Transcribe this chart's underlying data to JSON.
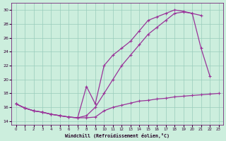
{
  "xlabel": "Windchill (Refroidissement éolien,°C)",
  "bg_color": "#cceedd",
  "line_color": "#993399",
  "xlim": [
    -0.5,
    23.5
  ],
  "ylim": [
    13.5,
    31.0
  ],
  "yticks": [
    14,
    16,
    18,
    20,
    22,
    24,
    26,
    28,
    30
  ],
  "xticks": [
    0,
    1,
    2,
    3,
    4,
    5,
    6,
    7,
    8,
    9,
    10,
    11,
    12,
    13,
    14,
    15,
    16,
    17,
    18,
    19,
    20,
    21,
    22,
    23
  ],
  "line1_x": [
    0,
    1,
    2,
    3,
    4,
    5,
    6,
    7,
    8,
    9,
    10,
    11,
    12,
    13,
    14,
    15,
    16,
    17,
    18,
    19,
    20,
    21,
    22,
    23
  ],
  "line1_y": [
    16.5,
    15.9,
    15.5,
    15.3,
    15.0,
    14.8,
    14.6,
    14.5,
    14.5,
    14.6,
    15.5,
    16.0,
    16.3,
    16.6,
    16.9,
    17.0,
    17.2,
    17.3,
    17.5,
    17.6,
    17.7,
    17.8,
    17.9,
    18.0
  ],
  "line2_x": [
    0,
    1,
    2,
    3,
    4,
    5,
    6,
    7,
    8,
    9,
    10,
    11,
    12,
    13,
    14,
    15,
    16,
    17,
    18,
    19,
    20,
    21,
    22,
    23
  ],
  "line2_y": [
    16.5,
    15.9,
    15.5,
    15.3,
    15.0,
    14.8,
    14.6,
    14.5,
    19.0,
    16.5,
    22.0,
    23.5,
    24.5,
    25.5,
    27.0,
    28.5,
    29.0,
    29.5,
    30.0,
    29.8,
    29.5,
    24.5,
    20.5,
    null
  ],
  "line3_x": [
    0,
    1,
    2,
    3,
    4,
    5,
    6,
    7,
    8,
    9,
    10,
    11,
    12,
    13,
    14,
    15,
    16,
    17,
    18,
    19,
    20,
    21,
    22,
    23
  ],
  "line3_y": [
    16.5,
    15.9,
    15.5,
    15.3,
    15.0,
    14.8,
    14.6,
    14.5,
    14.8,
    16.0,
    18.0,
    20.0,
    22.0,
    23.5,
    25.0,
    26.5,
    27.5,
    28.5,
    29.5,
    29.7,
    29.5,
    29.2,
    null,
    null
  ]
}
